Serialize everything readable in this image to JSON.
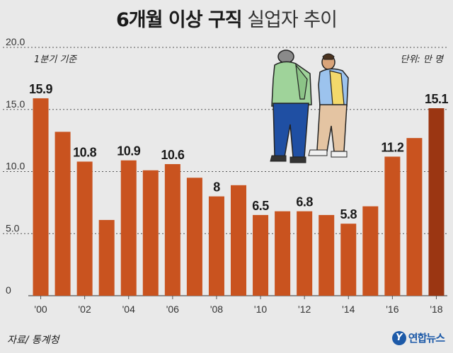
{
  "header": {
    "title_bold": "6개월 이상 구직",
    "title_light": "실업자 추이"
  },
  "notes": {
    "basis": "1분기 기준",
    "unit": "단위: 만 명",
    "source": "자료/ 통계청",
    "logo_text": "연합뉴스",
    "logo_mark": "Y"
  },
  "colors": {
    "bar": "#c9531f",
    "bar_highlight": "#9b3612",
    "bar_stroke": "#ffffff",
    "axis": "#555555",
    "grid": "#555555",
    "logo": "#1d5aa8"
  },
  "illustration": "two-men-standing-icon",
  "chart_data": {
    "type": "bar",
    "title": "6개월 이상 구직 실업자 추이",
    "xlabel": "",
    "ylabel": "",
    "unit": "만 명",
    "x": [
      2000,
      2001,
      2002,
      2003,
      2004,
      2005,
      2006,
      2007,
      2008,
      2009,
      2010,
      2011,
      2012,
      2013,
      2014,
      2015,
      2016,
      2017,
      2018
    ],
    "values": [
      15.9,
      13.2,
      10.8,
      6.1,
      10.9,
      10.1,
      10.6,
      9.5,
      8.0,
      8.9,
      6.5,
      6.8,
      6.8,
      6.5,
      5.8,
      7.2,
      11.2,
      12.7,
      15.1
    ],
    "labeled_indices": [
      0,
      2,
      4,
      6,
      8,
      10,
      12,
      14,
      16,
      18
    ],
    "x_tick_labels": [
      "'00",
      "'02",
      "'04",
      "'06",
      "'08",
      "'10",
      "'12",
      "'14",
      "'16",
      "'18"
    ],
    "x_tick_indices": [
      0,
      2,
      4,
      6,
      8,
      10,
      12,
      14,
      16,
      18
    ],
    "y_ticks": [
      0,
      5.0,
      10.0,
      15.0,
      20.0
    ],
    "y_tick_labels": [
      "0",
      "5.0",
      "10.0",
      "15.0",
      "20.0"
    ],
    "ylim": [
      0,
      20
    ],
    "highlight_index": 18,
    "grid": true,
    "legend": "none"
  }
}
